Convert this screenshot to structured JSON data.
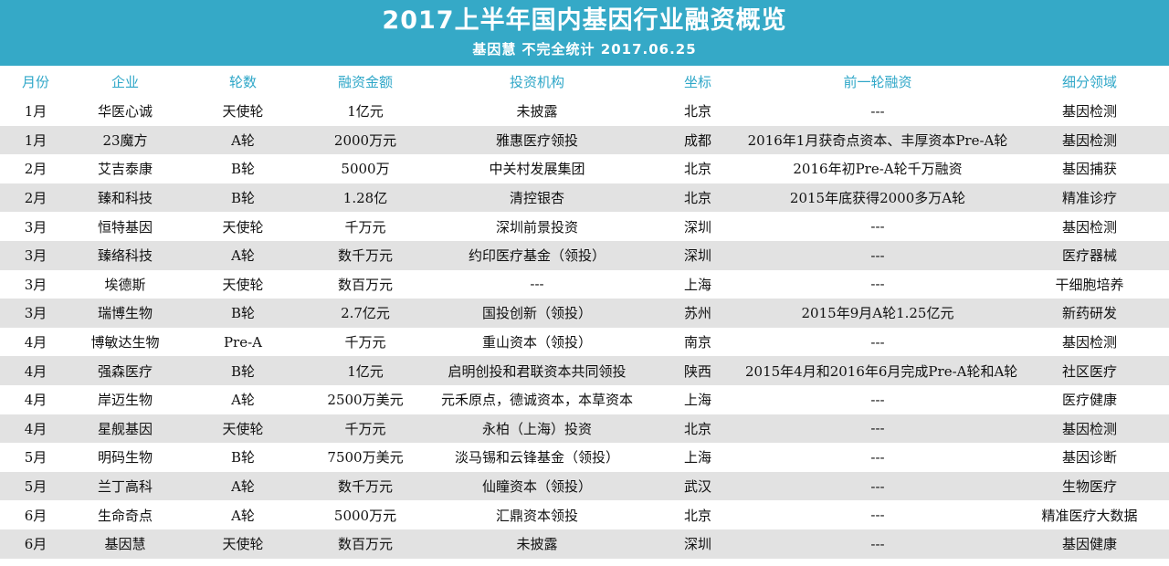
{
  "header": {
    "title": "2017上半年国内基因行业融资概览",
    "subtitle": "基因慧 不完全统计 2017.06.25",
    "bg_color": "#35a9c7"
  },
  "table": {
    "columns": [
      "月份",
      "企业",
      "轮数",
      "融资金额",
      "投资机构",
      "坐标",
      "前一轮融资",
      "细分领域"
    ],
    "rows": [
      [
        "1月",
        "华医心诚",
        "天使轮",
        "1亿元",
        "未披露",
        "北京",
        "---",
        "基因检测"
      ],
      [
        "1月",
        "23魔方",
        "A轮",
        "2000万元",
        "雅惠医疗领投",
        "成都",
        "2016年1月获奇点资本、丰厚资本Pre-A轮",
        "基因检测"
      ],
      [
        "2月",
        "艾吉泰康",
        "B轮",
        "5000万",
        "中关村发展集团",
        "北京",
        "2016年初Pre-A轮千万融资",
        "基因捕获"
      ],
      [
        "2月",
        "臻和科技",
        "B轮",
        "1.28亿",
        "清控银杏",
        "北京",
        "2015年底获得2000多万A轮",
        "精准诊疗"
      ],
      [
        "3月",
        "恒特基因",
        "天使轮",
        "千万元",
        "深圳前景投资",
        "深圳",
        "---",
        "基因检测"
      ],
      [
        "3月",
        "臻络科技",
        "A轮",
        "数千万元",
        "约印医疗基金（领投）",
        "深圳",
        "---",
        "医疗器械"
      ],
      [
        "3月",
        "埃德斯",
        "天使轮",
        "数百万元",
        "---",
        "上海",
        "---",
        "干细胞培养"
      ],
      [
        "3月",
        "瑞博生物",
        "B轮",
        "2.7亿元",
        "国投创新（领投）",
        "苏州",
        "2015年9月A轮1.25亿元",
        "新药研发"
      ],
      [
        "4月",
        "博敏达生物",
        "Pre-A",
        "千万元",
        "重山资本（领投）",
        "南京",
        "---",
        "基因检测"
      ],
      [
        "4月",
        "强森医疗",
        "B轮",
        "1亿元",
        "启明创投和君联资本共同领投",
        "陕西",
        "2015年4月和2016年6月完成Pre-A轮和A轮",
        "社区医疗"
      ],
      [
        "4月",
        "岸迈生物",
        "A轮",
        "2500万美元",
        "元禾原点，德诚资本，本草资本",
        "上海",
        "---",
        "医疗健康"
      ],
      [
        "4月",
        "星舰基因",
        "天使轮",
        "千万元",
        "永柏（上海）投资",
        "北京",
        "---",
        "基因检测"
      ],
      [
        "5月",
        "明码生物",
        "B轮",
        "7500万美元",
        "淡马锡和云锋基金（领投）",
        "上海",
        "---",
        "基因诊断"
      ],
      [
        "5月",
        "兰丁高科",
        "A轮",
        "数千万元",
        "仙瞳资本（领投）",
        "武汉",
        "---",
        "生物医疗"
      ],
      [
        "6月",
        "生命奇点",
        "A轮",
        "5000万元",
        "汇鼎资本领投",
        "北京",
        "---",
        "精准医疗大数据"
      ],
      [
        "6月",
        "基因慧",
        "天使轮",
        "数百万元",
        "未披露",
        "深圳",
        "---",
        "基因健康"
      ]
    ]
  },
  "colors": {
    "header_text": "#2fa7c8",
    "band": "#e2e2e2"
  }
}
